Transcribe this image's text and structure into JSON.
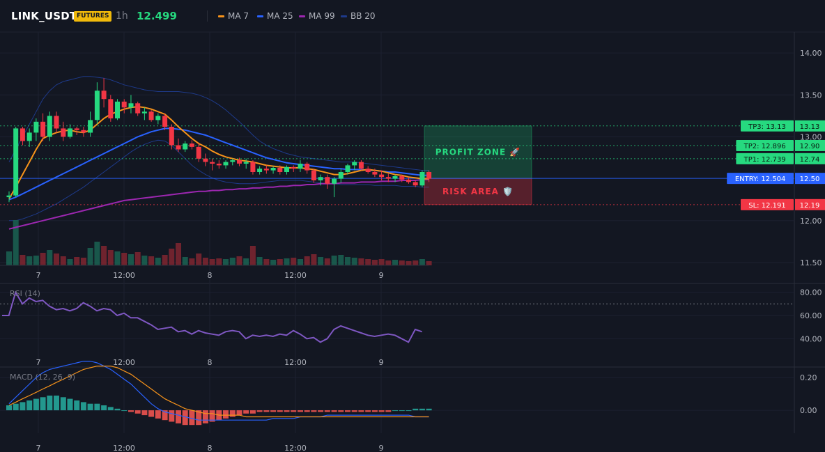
{
  "header": {
    "symbol": "LINK_USDT",
    "badge": "FUTURES",
    "timeframe": "1h",
    "price": "12.499"
  },
  "legend": [
    {
      "label": "MA 7",
      "color": "#f7931a"
    },
    {
      "label": "MA 25",
      "color": "#2962ff"
    },
    {
      "label": "MA 99",
      "color": "#9c27b0"
    },
    {
      "label": "BB 20",
      "color": "#1e3a8a"
    }
  ],
  "colors": {
    "up": "#26d97f",
    "down": "#f23645",
    "entry": "#2962ff",
    "sl": "#f23645",
    "tp": "#26d97f"
  },
  "chart_data": [
    {
      "type": "candlestick",
      "title": "LINK_USDT",
      "x_ticks": [
        "7",
        "12:00",
        "8",
        "12:00",
        "9"
      ],
      "y_ticks": [
        "14.00",
        "13.50",
        "13.00",
        "12.00",
        "11.50"
      ],
      "ylim": [
        11.45,
        14.25
      ],
      "candles": [
        [
          12.28,
          12.35,
          12.22,
          12.3
        ],
        [
          12.3,
          13.12,
          12.28,
          13.1
        ],
        [
          13.1,
          13.12,
          12.9,
          12.95
        ],
        [
          12.95,
          13.1,
          12.88,
          13.05
        ],
        [
          13.05,
          13.22,
          12.95,
          13.18
        ],
        [
          13.18,
          13.28,
          12.95,
          13.0
        ],
        [
          13.0,
          13.3,
          12.95,
          13.25
        ],
        [
          13.25,
          13.3,
          13.05,
          13.1
        ],
        [
          13.1,
          13.18,
          12.95,
          13.0
        ],
        [
          13.0,
          13.15,
          12.98,
          13.1
        ],
        [
          13.1,
          13.12,
          13.02,
          13.08
        ],
        [
          13.08,
          13.12,
          13.0,
          13.05
        ],
        [
          13.05,
          13.3,
          13.0,
          13.2
        ],
        [
          13.2,
          13.65,
          13.15,
          13.55
        ],
        [
          13.55,
          13.7,
          13.35,
          13.45
        ],
        [
          13.45,
          13.5,
          13.18,
          13.22
        ],
        [
          13.22,
          13.45,
          13.2,
          13.42
        ],
        [
          13.42,
          13.45,
          13.28,
          13.35
        ],
        [
          13.35,
          13.5,
          13.28,
          13.4
        ],
        [
          13.4,
          13.42,
          13.25,
          13.28
        ],
        [
          13.28,
          13.35,
          13.2,
          13.3
        ],
        [
          13.3,
          13.32,
          13.18,
          13.2
        ],
        [
          13.2,
          13.28,
          13.15,
          13.25
        ],
        [
          13.25,
          13.28,
          13.08,
          13.12
        ],
        [
          13.12,
          13.15,
          12.85,
          12.9
        ],
        [
          12.9,
          12.98,
          12.82,
          12.85
        ],
        [
          12.85,
          12.95,
          12.82,
          12.92
        ],
        [
          12.92,
          12.96,
          12.85,
          12.88
        ],
        [
          12.88,
          12.92,
          12.7,
          12.74
        ],
        [
          12.74,
          12.8,
          12.65,
          12.7
        ],
        [
          12.7,
          12.74,
          12.6,
          12.68
        ],
        [
          12.68,
          12.72,
          12.62,
          12.66
        ],
        [
          12.66,
          12.72,
          12.62,
          12.7
        ],
        [
          12.7,
          12.74,
          12.66,
          12.72
        ],
        [
          12.72,
          12.75,
          12.65,
          12.68
        ],
        [
          12.68,
          12.74,
          12.62,
          12.7
        ],
        [
          12.7,
          12.72,
          12.55,
          12.58
        ],
        [
          12.58,
          12.65,
          12.55,
          12.62
        ],
        [
          12.62,
          12.66,
          12.56,
          12.6
        ],
        [
          12.6,
          12.65,
          12.56,
          12.63
        ],
        [
          12.63,
          12.66,
          12.55,
          12.58
        ],
        [
          12.58,
          12.66,
          12.55,
          12.64
        ],
        [
          12.64,
          12.66,
          12.58,
          12.62
        ],
        [
          12.62,
          12.72,
          12.58,
          12.68
        ],
        [
          12.68,
          12.7,
          12.56,
          12.6
        ],
        [
          12.6,
          12.62,
          12.45,
          12.48
        ],
        [
          12.48,
          12.55,
          12.42,
          12.52
        ],
        [
          12.52,
          12.55,
          12.38,
          12.44
        ],
        [
          12.44,
          12.52,
          12.28,
          12.5
        ],
        [
          12.5,
          12.62,
          12.45,
          12.58
        ],
        [
          12.58,
          12.68,
          12.55,
          12.66
        ],
        [
          12.66,
          12.72,
          12.6,
          12.7
        ],
        [
          12.7,
          12.72,
          12.6,
          12.62
        ],
        [
          12.62,
          12.65,
          12.56,
          12.58
        ],
        [
          12.58,
          12.62,
          12.52,
          12.55
        ],
        [
          12.55,
          12.6,
          12.48,
          12.52
        ],
        [
          12.52,
          12.56,
          12.46,
          12.5
        ],
        [
          12.5,
          12.55,
          12.46,
          12.53
        ],
        [
          12.53,
          12.55,
          12.46,
          12.49
        ],
        [
          12.49,
          12.52,
          12.44,
          12.46
        ],
        [
          12.46,
          12.48,
          12.4,
          12.42
        ],
        [
          12.42,
          12.6,
          12.4,
          12.58
        ],
        [
          12.58,
          12.6,
          12.46,
          12.5
        ]
      ],
      "volume": [
        20,
        65,
        15,
        13,
        14,
        18,
        22,
        17,
        13,
        9,
        12,
        11,
        25,
        34,
        28,
        22,
        20,
        18,
        16,
        19,
        14,
        13,
        11,
        15,
        24,
        32,
        12,
        10,
        17,
        11,
        9,
        10,
        9,
        11,
        13,
        10,
        28,
        12,
        9,
        8,
        9,
        10,
        11,
        9,
        13,
        16,
        12,
        10,
        14,
        15,
        12,
        11,
        10,
        9,
        8,
        9,
        7,
        8,
        7,
        6,
        7,
        9,
        6
      ],
      "ma7": [
        12.26,
        12.4,
        12.55,
        12.7,
        12.85,
        12.98,
        13.02,
        13.05,
        13.07,
        13.08,
        13.06,
        13.05,
        13.08,
        13.15,
        13.22,
        13.27,
        13.3,
        13.33,
        13.35,
        13.36,
        13.35,
        13.33,
        13.3,
        13.27,
        13.2,
        13.12,
        13.05,
        12.98,
        12.92,
        12.88,
        12.83,
        12.79,
        12.76,
        12.74,
        12.72,
        12.71,
        12.7,
        12.68,
        12.66,
        12.65,
        12.64,
        12.63,
        12.63,
        12.63,
        12.62,
        12.61,
        12.59,
        12.57,
        12.55,
        12.55,
        12.56,
        12.58,
        12.6,
        12.61,
        12.6,
        12.59,
        12.57,
        12.55,
        12.54,
        12.52,
        12.51,
        12.5,
        12.5
      ],
      "ma25": [
        12.25,
        12.28,
        12.32,
        12.36,
        12.4,
        12.44,
        12.48,
        12.52,
        12.56,
        12.6,
        12.64,
        12.68,
        12.72,
        12.76,
        12.8,
        12.84,
        12.88,
        12.92,
        12.96,
        13.0,
        13.03,
        13.06,
        13.08,
        13.1,
        13.1,
        13.09,
        13.08,
        13.06,
        13.04,
        13.02,
        12.99,
        12.96,
        12.93,
        12.9,
        12.87,
        12.84,
        12.81,
        12.78,
        12.75,
        12.73,
        12.71,
        12.69,
        12.68,
        12.67,
        12.66,
        12.65,
        12.64,
        12.63,
        12.62,
        12.62,
        12.61,
        12.61,
        12.61,
        12.6,
        12.6,
        12.59,
        12.58,
        12.58,
        12.57,
        12.56,
        12.55,
        12.54,
        12.54
      ],
      "ma99": [
        11.9,
        11.92,
        11.94,
        11.96,
        11.98,
        12.0,
        12.02,
        12.04,
        12.06,
        12.08,
        12.1,
        12.12,
        12.14,
        12.16,
        12.18,
        12.2,
        12.22,
        12.24,
        12.25,
        12.26,
        12.27,
        12.28,
        12.29,
        12.3,
        12.31,
        12.32,
        12.33,
        12.34,
        12.35,
        12.35,
        12.36,
        12.36,
        12.37,
        12.37,
        12.38,
        12.38,
        12.39,
        12.39,
        12.4,
        12.4,
        12.41,
        12.41,
        12.42,
        12.42,
        12.43,
        12.43,
        12.44,
        12.44,
        12.44,
        12.45,
        12.45,
        12.45,
        12.46,
        12.46,
        12.46,
        12.47,
        12.47,
        12.47,
        12.48,
        12.48,
        12.48,
        12.49,
        12.49
      ],
      "bb_upper": [
        12.7,
        12.85,
        13.0,
        13.15,
        13.3,
        13.45,
        13.55,
        13.62,
        13.66,
        13.68,
        13.7,
        13.72,
        13.72,
        13.71,
        13.7,
        13.68,
        13.65,
        13.62,
        13.6,
        13.58,
        13.56,
        13.55,
        13.54,
        13.54,
        13.54,
        13.54,
        13.53,
        13.52,
        13.5,
        13.47,
        13.43,
        13.38,
        13.32,
        13.25,
        13.18,
        13.1,
        13.02,
        12.95,
        12.9,
        12.86,
        12.83,
        12.8,
        12.78,
        12.76,
        12.75,
        12.74,
        12.73,
        12.72,
        12.71,
        12.7,
        12.7,
        12.7,
        12.69,
        12.68,
        12.67,
        12.66,
        12.65,
        12.64,
        12.63,
        12.62,
        12.61,
        12.6,
        12.6
      ],
      "bb_lower": [
        12.0,
        12.0,
        12.02,
        12.05,
        12.08,
        12.12,
        12.16,
        12.2,
        12.25,
        12.3,
        12.35,
        12.4,
        12.46,
        12.52,
        12.58,
        12.64,
        12.7,
        12.76,
        12.82,
        12.87,
        12.91,
        12.94,
        12.96,
        12.95,
        12.9,
        12.82,
        12.74,
        12.66,
        12.6,
        12.55,
        12.51,
        12.48,
        12.46,
        12.45,
        12.44,
        12.44,
        12.44,
        12.45,
        12.46,
        12.47,
        12.48,
        12.48,
        12.48,
        12.48,
        12.47,
        12.46,
        12.45,
        12.44,
        12.44,
        12.43,
        12.43,
        12.43,
        12.43,
        12.43,
        12.42,
        12.42,
        12.42,
        12.42,
        12.41,
        12.41,
        12.41,
        12.4,
        12.4
      ],
      "levels": [
        {
          "tag": "TP3: 13.13",
          "axis": "13.13",
          "value": 13.13,
          "kind": "tp"
        },
        {
          "tag": "TP2: 12.896",
          "axis": "12.90",
          "value": 12.896,
          "kind": "tp"
        },
        {
          "tag": "TP1: 12.739",
          "axis": "12.74",
          "value": 12.739,
          "kind": "tp"
        },
        {
          "tag": "ENTRY: 12.504",
          "axis": "12.50",
          "value": 12.504,
          "kind": "entry"
        },
        {
          "tag": "SL: 12.191",
          "axis": "12.19",
          "value": 12.191,
          "kind": "sl"
        }
      ],
      "zones": [
        {
          "label": "PROFIT ZONE 🚀",
          "from": 12.504,
          "to": 13.13,
          "kind": "profit"
        },
        {
          "label": "RISK AREA 🛡️",
          "from": 12.191,
          "to": 12.504,
          "kind": "risk"
        }
      ]
    },
    {
      "type": "line",
      "title": "RSI (14)",
      "y_ticks": [
        "80.00",
        "60.00",
        "40.00"
      ],
      "ylim": [
        30,
        87
      ],
      "overbought": 70,
      "values": [
        60,
        60,
        80,
        70,
        75,
        72,
        73,
        68,
        65,
        66,
        64,
        66,
        71,
        68,
        64,
        66,
        65,
        60,
        62,
        58,
        58,
        55,
        52,
        48,
        49,
        50,
        46,
        47,
        44,
        47,
        45,
        44,
        43,
        46,
        47,
        46,
        40,
        43,
        42,
        43,
        42,
        44,
        43,
        47,
        44,
        40,
        41,
        37,
        40,
        48,
        51,
        49,
        47,
        45,
        43,
        42,
        43,
        44,
        43,
        40,
        37,
        48,
        46
      ]
    },
    {
      "type": "bar",
      "title": "MACD (12, 26, 9)",
      "y_ticks": [
        "0.20",
        "0.00"
      ],
      "ylim": [
        -0.14,
        0.26
      ],
      "histogram": [
        0.03,
        0.04,
        0.05,
        0.06,
        0.07,
        0.08,
        0.09,
        0.09,
        0.08,
        0.07,
        0.06,
        0.05,
        0.04,
        0.04,
        0.03,
        0.02,
        0.01,
        0.0,
        -0.01,
        -0.02,
        -0.03,
        -0.04,
        -0.05,
        -0.06,
        -0.07,
        -0.08,
        -0.09,
        -0.09,
        -0.09,
        -0.08,
        -0.07,
        -0.06,
        -0.05,
        -0.04,
        -0.03,
        -0.02,
        -0.02,
        -0.01,
        -0.01,
        -0.01,
        -0.01,
        -0.01,
        -0.01,
        -0.01,
        -0.01,
        -0.01,
        -0.01,
        -0.01,
        -0.01,
        -0.01,
        -0.01,
        -0.01,
        -0.01,
        -0.01,
        -0.01,
        -0.01,
        -0.01,
        0.0,
        0.0,
        0.0,
        0.01,
        0.01,
        0.01
      ],
      "macd": [
        0.04,
        0.08,
        0.12,
        0.16,
        0.2,
        0.23,
        0.25,
        0.26,
        0.27,
        0.28,
        0.29,
        0.3,
        0.3,
        0.29,
        0.27,
        0.25,
        0.22,
        0.19,
        0.16,
        0.12,
        0.08,
        0.04,
        0.01,
        -0.01,
        -0.02,
        -0.03,
        -0.04,
        -0.05,
        -0.06,
        -0.06,
        -0.06,
        -0.06,
        -0.06,
        -0.06,
        -0.06,
        -0.06,
        -0.06,
        -0.06,
        -0.06,
        -0.05,
        -0.05,
        -0.05,
        -0.05,
        -0.04,
        -0.04,
        -0.04,
        -0.04,
        -0.03,
        -0.03,
        -0.03,
        -0.03,
        -0.03,
        -0.03,
        -0.03,
        -0.03,
        -0.03,
        -0.03,
        -0.03,
        -0.03,
        -0.03,
        -0.04,
        -0.04,
        -0.04
      ],
      "signal": [
        0.03,
        0.05,
        0.07,
        0.09,
        0.11,
        0.13,
        0.15,
        0.17,
        0.19,
        0.21,
        0.23,
        0.25,
        0.26,
        0.27,
        0.27,
        0.27,
        0.26,
        0.24,
        0.22,
        0.19,
        0.16,
        0.13,
        0.1,
        0.07,
        0.05,
        0.03,
        0.01,
        0.0,
        -0.01,
        -0.02,
        -0.02,
        -0.03,
        -0.03,
        -0.03,
        -0.03,
        -0.04,
        -0.04,
        -0.04,
        -0.04,
        -0.04,
        -0.04,
        -0.04,
        -0.04,
        -0.04,
        -0.04,
        -0.04,
        -0.04,
        -0.04,
        -0.04,
        -0.04,
        -0.04,
        -0.04,
        -0.04,
        -0.04,
        -0.04,
        -0.04,
        -0.04,
        -0.04,
        -0.04,
        -0.04,
        -0.04,
        -0.04,
        -0.04
      ]
    }
  ]
}
